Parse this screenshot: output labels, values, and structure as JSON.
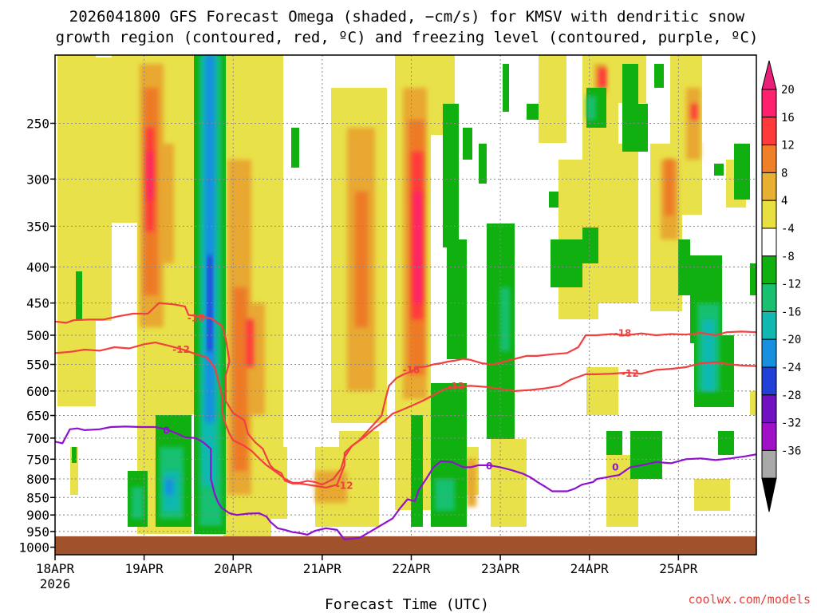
{
  "chart_data": {
    "type": "heatmap",
    "title_line1": "2026041800 GFS Forecast Omega (shaded, −cm/s) for KMSV with dendritic snow",
    "title_line2": "growth region (contoured, red, ºC) and freezing level (contoured, purple, ºC)",
    "xlabel": "Forecast Time (UTC)",
    "credit": "coolwx.com/models",
    "x_range_hours": [
      0,
      189
    ],
    "x_ticks": [
      {
        "hour": 0,
        "label": "18APR",
        "sub": "2026"
      },
      {
        "hour": 24,
        "label": "19APR",
        "sub": ""
      },
      {
        "hour": 48,
        "label": "20APR",
        "sub": ""
      },
      {
        "hour": 72,
        "label": "21APR",
        "sub": ""
      },
      {
        "hour": 96,
        "label": "22APR",
        "sub": ""
      },
      {
        "hour": 120,
        "label": "23APR",
        "sub": ""
      },
      {
        "hour": 144,
        "label": "24APR",
        "sub": ""
      },
      {
        "hour": 168,
        "label": "25APR",
        "sub": ""
      }
    ],
    "y_ticks": [
      "250",
      "300",
      "350",
      "400",
      "450",
      "500",
      "550",
      "600",
      "650",
      "700",
      "750",
      "800",
      "850",
      "900",
      "950",
      "1000"
    ],
    "y_range_hpa": [
      200,
      1025
    ],
    "ground_hpa": 965,
    "colorbar": {
      "labels": [
        "20",
        "16",
        "12",
        "8",
        "4",
        "-4",
        "-8",
        "-12",
        "-16",
        "-20",
        "-24",
        "-28",
        "-32",
        "-36"
      ],
      "colors": [
        "#ff2070",
        "#ff3a3a",
        "#f08028",
        "#e8b030",
        "#e8e040",
        "#ffffff",
        "#10b010",
        "#18c070",
        "#10b8b0",
        "#1890e0",
        "#2040d8",
        "#7010c0",
        "#a010c8",
        "#a8a8a8"
      ],
      "top_arrow": "#e8207a",
      "bottom_arrow": "#000000"
    },
    "colors": {
      "ground": "#a0522d",
      "dgz": "#f04040",
      "freezing": "#9010d0",
      "grid": "#888888"
    },
    "contours": {
      "minus18": {
        "label": "-18",
        "points": [
          [
            0,
            478
          ],
          [
            3,
            480
          ],
          [
            5,
            476
          ],
          [
            9,
            475
          ],
          [
            13,
            475
          ],
          [
            17,
            470
          ],
          [
            21,
            466
          ],
          [
            25,
            466
          ],
          [
            28,
            450
          ],
          [
            32,
            452
          ],
          [
            35,
            455
          ],
          [
            36,
            468
          ],
          [
            39,
            470
          ],
          [
            42,
            473
          ],
          [
            45,
            485
          ],
          [
            46,
            505
          ],
          [
            47,
            545
          ],
          [
            46,
            570
          ],
          [
            46,
            620
          ],
          [
            48,
            645
          ],
          [
            51,
            660
          ],
          [
            52,
            690
          ],
          [
            54,
            710
          ],
          [
            56,
            725
          ],
          [
            57,
            745
          ],
          [
            58,
            765
          ],
          [
            59,
            775
          ],
          [
            61,
            785
          ],
          [
            62,
            805
          ],
          [
            64,
            812
          ],
          [
            66,
            812
          ],
          [
            68,
            815
          ],
          [
            70,
            818
          ],
          [
            73,
            823
          ],
          [
            76,
            815
          ],
          [
            77,
            790
          ],
          [
            78,
            765
          ],
          [
            78,
            735
          ],
          [
            80,
            718
          ],
          [
            82,
            705
          ],
          [
            84,
            686
          ],
          [
            86,
            668
          ],
          [
            88,
            650
          ],
          [
            89,
            618
          ],
          [
            90,
            590
          ],
          [
            92,
            575
          ],
          [
            94,
            568
          ],
          [
            96,
            563
          ],
          [
            98,
            555
          ],
          [
            100,
            554
          ],
          [
            102,
            550
          ],
          [
            104,
            548
          ],
          [
            106,
            545
          ],
          [
            108,
            543
          ],
          [
            110,
            540
          ],
          [
            112,
            542
          ],
          [
            115,
            548
          ],
          [
            118,
            550
          ],
          [
            121,
            545
          ],
          [
            124,
            540
          ],
          [
            127,
            535
          ],
          [
            130,
            535
          ],
          [
            134,
            532
          ],
          [
            138,
            530
          ],
          [
            141,
            520
          ],
          [
            142,
            510
          ],
          [
            143,
            500
          ],
          [
            146,
            500
          ],
          [
            150,
            498
          ],
          [
            154,
            500
          ],
          [
            158,
            497
          ],
          [
            162,
            500
          ],
          [
            166,
            498
          ],
          [
            170,
            499
          ],
          [
            174,
            496
          ],
          [
            178,
            500
          ],
          [
            181,
            495
          ],
          [
            185,
            494
          ],
          [
            189,
            495
          ]
        ],
        "labels_at": [
          [
            38,
            473
          ],
          [
            96,
            560
          ],
          [
            153,
            497
          ]
        ]
      },
      "minus12": {
        "label": "-12",
        "points": [
          [
            0,
            530
          ],
          [
            4,
            528
          ],
          [
            8,
            524
          ],
          [
            12,
            526
          ],
          [
            16,
            520
          ],
          [
            20,
            522
          ],
          [
            24,
            515
          ],
          [
            27,
            512
          ],
          [
            31,
            518
          ],
          [
            35,
            525
          ],
          [
            38,
            532
          ],
          [
            41,
            538
          ],
          [
            43,
            555
          ],
          [
            44,
            580
          ],
          [
            45,
            610
          ],
          [
            45,
            640
          ],
          [
            46,
            670
          ],
          [
            47,
            690
          ],
          [
            48,
            705
          ],
          [
            51,
            718
          ],
          [
            53,
            730
          ],
          [
            55,
            748
          ],
          [
            57,
            765
          ],
          [
            60,
            785
          ],
          [
            62,
            800
          ],
          [
            64,
            810
          ],
          [
            66,
            810
          ],
          [
            68,
            805
          ],
          [
            70,
            808
          ],
          [
            72,
            815
          ],
          [
            75,
            800
          ],
          [
            77,
            775
          ],
          [
            78,
            745
          ],
          [
            80,
            718
          ],
          [
            83,
            700
          ],
          [
            86,
            678
          ],
          [
            89,
            660
          ],
          [
            91,
            646
          ],
          [
            93,
            640
          ],
          [
            96,
            630
          ],
          [
            99,
            620
          ],
          [
            102,
            608
          ],
          [
            105,
            596
          ],
          [
            108,
            592
          ],
          [
            112,
            590
          ],
          [
            116,
            592
          ],
          [
            120,
            596
          ],
          [
            124,
            600
          ],
          [
            128,
            598
          ],
          [
            132,
            595
          ],
          [
            136,
            590
          ],
          [
            139,
            578
          ],
          [
            143,
            568
          ],
          [
            146,
            568
          ],
          [
            150,
            567
          ],
          [
            154,
            565
          ],
          [
            158,
            567
          ],
          [
            162,
            560
          ],
          [
            166,
            558
          ],
          [
            170,
            555
          ],
          [
            174,
            548
          ],
          [
            178,
            546
          ],
          [
            182,
            550
          ],
          [
            185,
            552
          ],
          [
            189,
            553
          ]
        ],
        "labels_at": [
          [
            34,
            524
          ],
          [
            108,
            591
          ],
          [
            155,
            567
          ],
          [
            78,
            818
          ]
        ]
      },
      "zero": {
        "label": "0",
        "points": [
          [
            0,
            708
          ],
          [
            2,
            712
          ],
          [
            4,
            680
          ],
          [
            6,
            678
          ],
          [
            8,
            682
          ],
          [
            12,
            680
          ],
          [
            15,
            675
          ],
          [
            19,
            674
          ],
          [
            23,
            675
          ],
          [
            27,
            675
          ],
          [
            30,
            680
          ],
          [
            33,
            690
          ],
          [
            35,
            698
          ],
          [
            38,
            700
          ],
          [
            40,
            710
          ],
          [
            42,
            725
          ],
          [
            42,
            755
          ],
          [
            42,
            800
          ],
          [
            43,
            840
          ],
          [
            44,
            865
          ],
          [
            45,
            880
          ],
          [
            47,
            895
          ],
          [
            49,
            900
          ],
          [
            52,
            896
          ],
          [
            55,
            895
          ],
          [
            57,
            905
          ],
          [
            58,
            920
          ],
          [
            60,
            940
          ],
          [
            62,
            945
          ],
          [
            64,
            952
          ],
          [
            66,
            955
          ],
          [
            68,
            960
          ],
          [
            70,
            948
          ],
          [
            73,
            940
          ],
          [
            76,
            945
          ],
          [
            77,
            960
          ],
          [
            78,
            975
          ],
          [
            82,
            970
          ],
          [
            85,
            950
          ],
          [
            88,
            930
          ],
          [
            91,
            910
          ],
          [
            93,
            880
          ],
          [
            95,
            855
          ],
          [
            97,
            860
          ],
          [
            98,
            830
          ],
          [
            100,
            800
          ],
          [
            102,
            770
          ],
          [
            104,
            755
          ],
          [
            107,
            757
          ],
          [
            110,
            770
          ],
          [
            112,
            770
          ],
          [
            114,
            765
          ],
          [
            117,
            765
          ],
          [
            120,
            770
          ],
          [
            123,
            777
          ],
          [
            126,
            786
          ],
          [
            128,
            795
          ],
          [
            130,
            808
          ],
          [
            132,
            820
          ],
          [
            134,
            833
          ],
          [
            138,
            833
          ],
          [
            140,
            826
          ],
          [
            142,
            815
          ],
          [
            145,
            808
          ],
          [
            146,
            800
          ],
          [
            148,
            797
          ],
          [
            150,
            793
          ],
          [
            152,
            790
          ],
          [
            155,
            770
          ],
          [
            158,
            765
          ],
          [
            162,
            757
          ],
          [
            166,
            760
          ],
          [
            170,
            750
          ],
          [
            174,
            748
          ],
          [
            178,
            752
          ],
          [
            182,
            748
          ],
          [
            186,
            743
          ],
          [
            189,
            738
          ]
        ],
        "labels_at": [
          [
            30,
            683
          ],
          [
            117,
            767
          ],
          [
            151,
            770
          ]
        ]
      }
    }
  }
}
